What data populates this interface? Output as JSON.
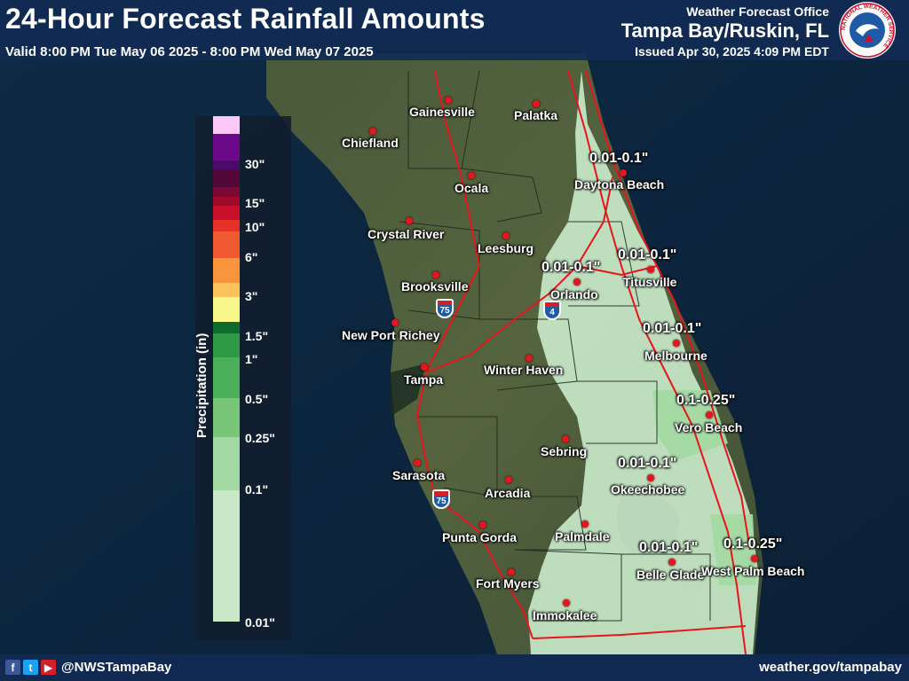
{
  "header": {
    "title": "24-Hour Forecast Rainfall Amounts",
    "valid": "Valid 8:00 PM Tue May 06 2025 - 8:00 PM Wed May 07 2025",
    "office_label": "Weather Forecast Office",
    "office_name": "Tampa Bay/Ruskin, FL",
    "issued": "Issued Apr 30, 2025 4:09 PM EDT",
    "logo_text": "NATIONAL WEATHER SERVICE"
  },
  "footer": {
    "social_icons": [
      "facebook-icon",
      "twitter-icon",
      "youtube-icon"
    ],
    "handle": "@NWSTampaBay",
    "website": "weather.gov/tampabay"
  },
  "legend": {
    "title": "Precipitation (in)",
    "colors": [
      "#c8e8c8",
      "#a3d9a3",
      "#78c678",
      "#4caf5a",
      "#2f9a46",
      "#0f6b2c",
      "#f8f88c",
      "#fcc35c",
      "#f8943c",
      "#f05a30",
      "#e53228",
      "#c8102a",
      "#a00a2a",
      "#7a0a30",
      "#54083a",
      "#4a0a6a",
      "#6a0a8a",
      "#fbc8f8"
    ],
    "ticks": [
      "0.01\"",
      "0.1\"",
      "0.25\"",
      "0.5\"",
      "1\"",
      "1.5\"",
      "3\"",
      "6\"",
      "10\"",
      "15\"",
      "30\""
    ]
  },
  "cities": [
    "Gainesville",
    "Palatka",
    "Chiefland",
    "Ocala",
    "Daytona Beach",
    "Crystal River",
    "Leesburg",
    "Brooksville",
    "Orlando",
    "Titusville",
    "New Port Richey",
    "Melbourne",
    "Winter Haven",
    "Tampa",
    "Vero Beach",
    "Sebring",
    "Sarasota",
    "Arcadia",
    "Okeechobee",
    "Punta Gorda",
    "Palmdale",
    "Belle Glade",
    "West Palm Beach",
    "Fort Myers",
    "Immokalee"
  ],
  "amounts": [
    "0.01-0.1\"",
    "0.01-0.1\"",
    "0.01-0.1\"",
    "0.01-0.1\"",
    "0.1-0.25\"",
    "0.01-0.1\"",
    "0.01-0.1\"",
    "0.1-0.25\""
  ],
  "highways": [
    "75",
    "4",
    "75"
  ],
  "colors": {
    "header_bg": "#102a54",
    "city_dot": "#e8141e",
    "roads": "#e8141e",
    "rain_light": "#c8e8c8",
    "rain_mid": "#a3d9a3"
  }
}
